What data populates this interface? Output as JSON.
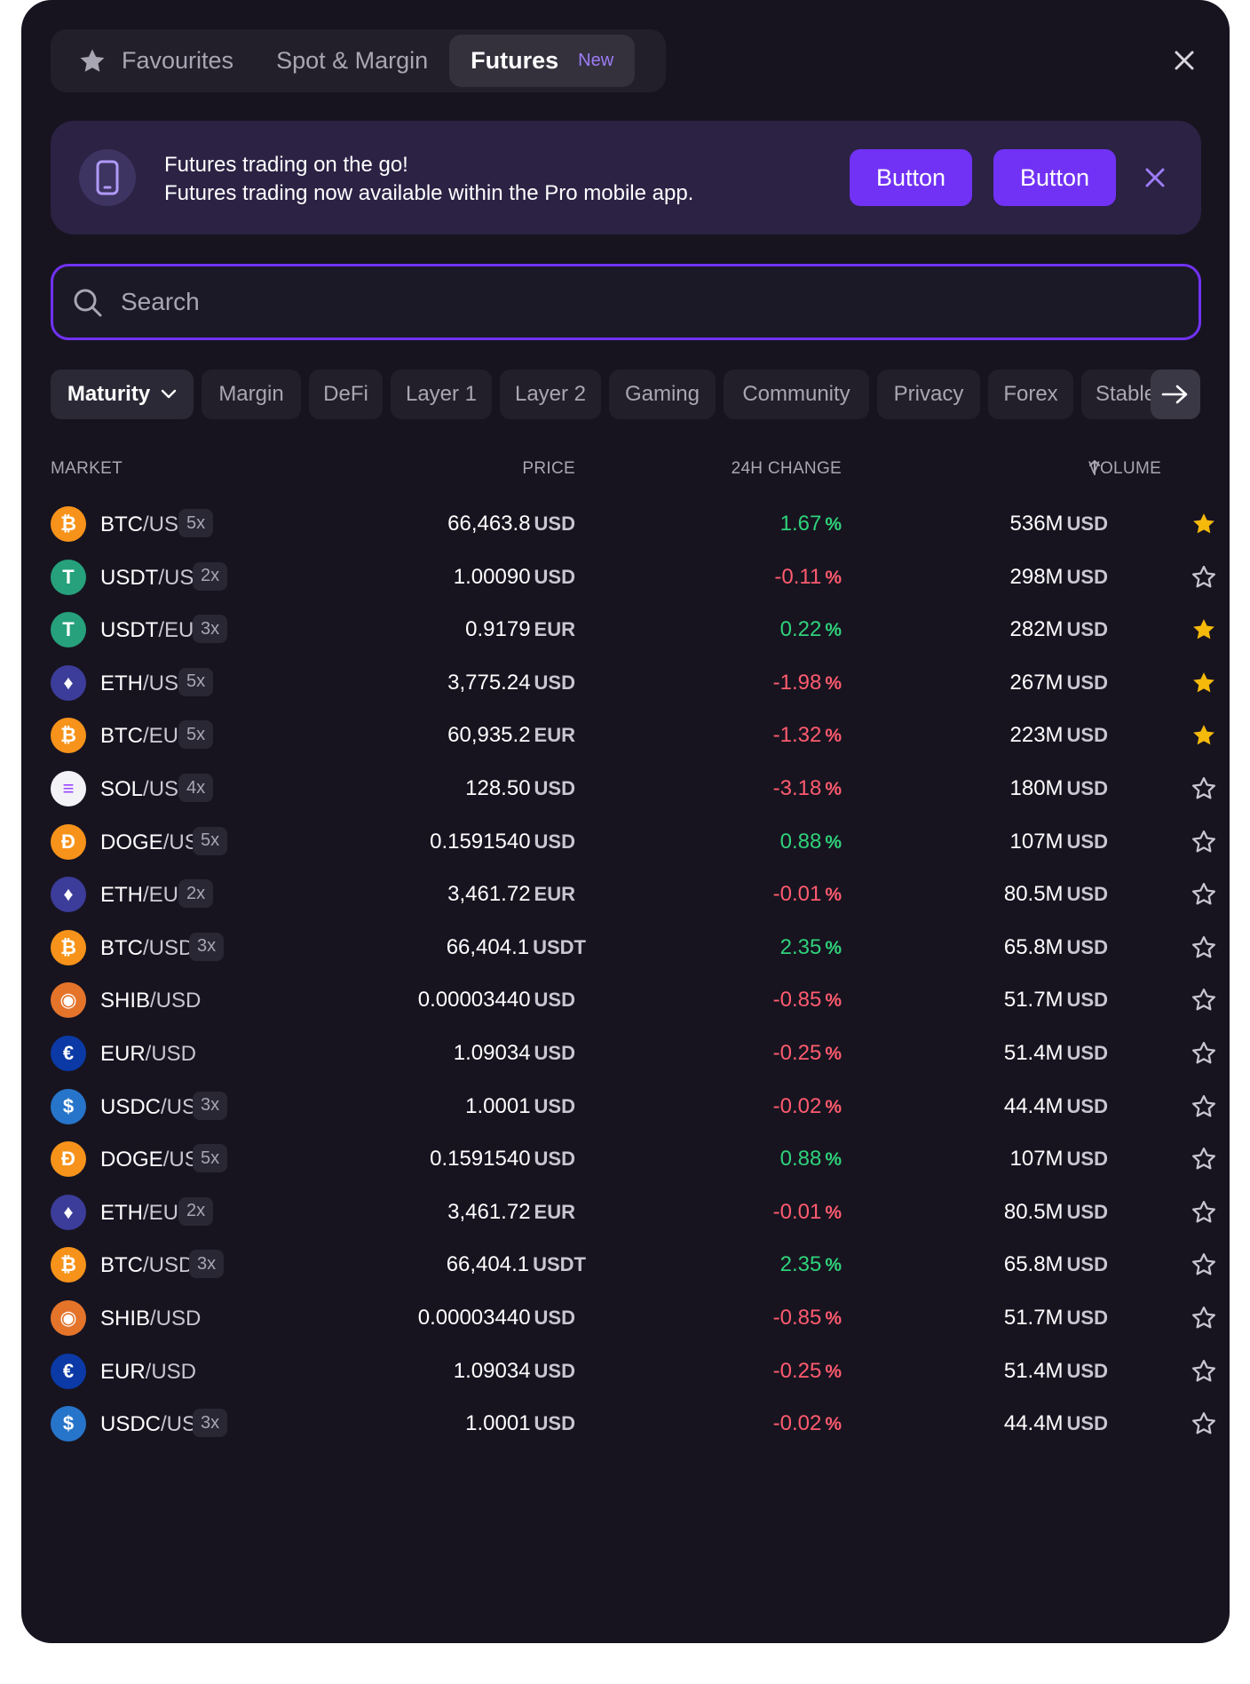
{
  "tabs": [
    {
      "label": "Favourites"
    },
    {
      "label": "Spot & Margin"
    },
    {
      "label": "Futures",
      "badge": "New"
    }
  ],
  "banner": {
    "title": "Futures trading on the go!",
    "subtitle": "Futures trading now available within the Pro mobile app.",
    "button1": "Button",
    "button2": "Button"
  },
  "search": {
    "placeholder": "Search"
  },
  "filters": [
    "Maturity",
    "Margin",
    "DeFi",
    "Layer 1",
    "Layer 2",
    "Gaming",
    "Community",
    "Privacy",
    "Forex",
    "Stable"
  ],
  "table": {
    "headers": {
      "market": "MARKET",
      "price": "PRICE",
      "change": "24H CHANGE",
      "volume": "VOLUME"
    },
    "rows": [
      {
        "coin": "btc",
        "base": "BTC",
        "quote": "/USD",
        "leverage": "5x",
        "price": "66,463.8",
        "price_ccy": "USD",
        "change": "1.67",
        "change_unit": "%",
        "direction": "up",
        "volume": "536M",
        "volume_ccy": "USD",
        "favourite": true
      },
      {
        "coin": "usdt",
        "base": "USDT",
        "quote": "/USD",
        "leverage": "2x",
        "price": "1.00090",
        "price_ccy": "USD",
        "change": "-0.11",
        "change_unit": "%",
        "direction": "down",
        "volume": "298M",
        "volume_ccy": "USD",
        "favourite": false
      },
      {
        "coin": "usdt",
        "base": "USDT",
        "quote": "/EUR",
        "leverage": "3x",
        "price": "0.9179",
        "price_ccy": "EUR",
        "change": "0.22",
        "change_unit": "%",
        "direction": "up",
        "volume": "282M",
        "volume_ccy": "USD",
        "favourite": true
      },
      {
        "coin": "eth",
        "base": "ETH",
        "quote": "/USD",
        "leverage": "5x",
        "price": "3,775.24",
        "price_ccy": "USD",
        "change": "-1.98",
        "change_unit": "%",
        "direction": "down",
        "volume": "267M",
        "volume_ccy": "USD",
        "favourite": true
      },
      {
        "coin": "btc",
        "base": "BTC",
        "quote": "/EUR",
        "leverage": "5x",
        "price": "60,935.2",
        "price_ccy": "EUR",
        "change": "-1.32",
        "change_unit": "%",
        "direction": "down",
        "volume": "223M",
        "volume_ccy": "USD",
        "favourite": true
      },
      {
        "coin": "sol",
        "base": "SOL",
        "quote": "/USD",
        "leverage": "4x",
        "price": "128.50",
        "price_ccy": "USD",
        "change": "-3.18",
        "change_unit": "%",
        "direction": "down",
        "volume": "180M",
        "volume_ccy": "USD",
        "favourite": false
      },
      {
        "coin": "doge",
        "base": "DOGE",
        "quote": "/USD",
        "leverage": "5x",
        "price": "0.1591540",
        "price_ccy": "USD",
        "change": "0.88",
        "change_unit": "%",
        "direction": "up",
        "volume": "107M",
        "volume_ccy": "USD",
        "favourite": false
      },
      {
        "coin": "eth",
        "base": "ETH",
        "quote": "/EUR",
        "leverage": "2x",
        "price": "3,461.72",
        "price_ccy": "EUR",
        "change": "-0.01",
        "change_unit": "%",
        "direction": "down",
        "volume": "80.5M",
        "volume_ccy": "USD",
        "favourite": false
      },
      {
        "coin": "btc",
        "base": "BTC",
        "quote": "/USDT",
        "leverage": "3x",
        "price": "66,404.1",
        "price_ccy": "USDT",
        "change": "2.35",
        "change_unit": "%",
        "direction": "up",
        "volume": "65.8M",
        "volume_ccy": "USD",
        "favourite": false
      },
      {
        "coin": "shib",
        "base": "SHIB",
        "quote": "/USD",
        "leverage": "",
        "price": "0.00003440",
        "price_ccy": "USD",
        "change": "-0.85",
        "change_unit": "%",
        "direction": "down",
        "volume": "51.7M",
        "volume_ccy": "USD",
        "favourite": false
      },
      {
        "coin": "eur",
        "base": "EUR",
        "quote": "/USD",
        "leverage": "",
        "price": "1.09034",
        "price_ccy": "USD",
        "change": "-0.25",
        "change_unit": "%",
        "direction": "down",
        "volume": "51.4M",
        "volume_ccy": "USD",
        "favourite": false
      },
      {
        "coin": "usdc",
        "base": "USDC",
        "quote": "/USD",
        "leverage": "3x",
        "price": "1.0001",
        "price_ccy": "USD",
        "change": "-0.02",
        "change_unit": "%",
        "direction": "down",
        "volume": "44.4M",
        "volume_ccy": "USD",
        "favourite": false
      },
      {
        "coin": "doge",
        "base": "DOGE",
        "quote": "/USD",
        "leverage": "5x",
        "price": "0.1591540",
        "price_ccy": "USD",
        "change": "0.88",
        "change_unit": "%",
        "direction": "up",
        "volume": "107M",
        "volume_ccy": "USD",
        "favourite": false
      },
      {
        "coin": "eth",
        "base": "ETH",
        "quote": "/EUR",
        "leverage": "2x",
        "price": "3,461.72",
        "price_ccy": "EUR",
        "change": "-0.01",
        "change_unit": "%",
        "direction": "down",
        "volume": "80.5M",
        "volume_ccy": "USD",
        "favourite": false
      },
      {
        "coin": "btc",
        "base": "BTC",
        "quote": "/USDT",
        "leverage": "3x",
        "price": "66,404.1",
        "price_ccy": "USDT",
        "change": "2.35",
        "change_unit": "%",
        "direction": "up",
        "volume": "65.8M",
        "volume_ccy": "USD",
        "favourite": false
      },
      {
        "coin": "shib",
        "base": "SHIB",
        "quote": "/USD",
        "leverage": "",
        "price": "0.00003440",
        "price_ccy": "USD",
        "change": "-0.85",
        "change_unit": "%",
        "direction": "down",
        "volume": "51.7M",
        "volume_ccy": "USD",
        "favourite": false
      },
      {
        "coin": "eur",
        "base": "EUR",
        "quote": "/USD",
        "leverage": "",
        "price": "1.09034",
        "price_ccy": "USD",
        "change": "-0.25",
        "change_unit": "%",
        "direction": "down",
        "volume": "51.4M",
        "volume_ccy": "USD",
        "favourite": false
      },
      {
        "coin": "usdc",
        "base": "USDC",
        "quote": "/USD",
        "leverage": "3x",
        "price": "1.0001",
        "price_ccy": "USD",
        "change": "-0.02",
        "change_unit": "%",
        "direction": "down",
        "volume": "44.4M",
        "volume_ccy": "USD",
        "favourite": false
      }
    ]
  },
  "colors": {
    "accent": "#7132f5",
    "background": "#171420",
    "positive": "#2fd27a",
    "negative": "#ff5b6e",
    "favourite": "#f5b90b"
  },
  "icons": {
    "favourites_tab": "star-icon",
    "banner": "phone-icon",
    "search": "search-icon",
    "maturity_filter": "chevron-down-icon",
    "filter_scroll": "arrow-right-icon",
    "volume_sort": "arrow-up-icon",
    "close": "close-icon",
    "favourite_marker": "star-icon"
  }
}
